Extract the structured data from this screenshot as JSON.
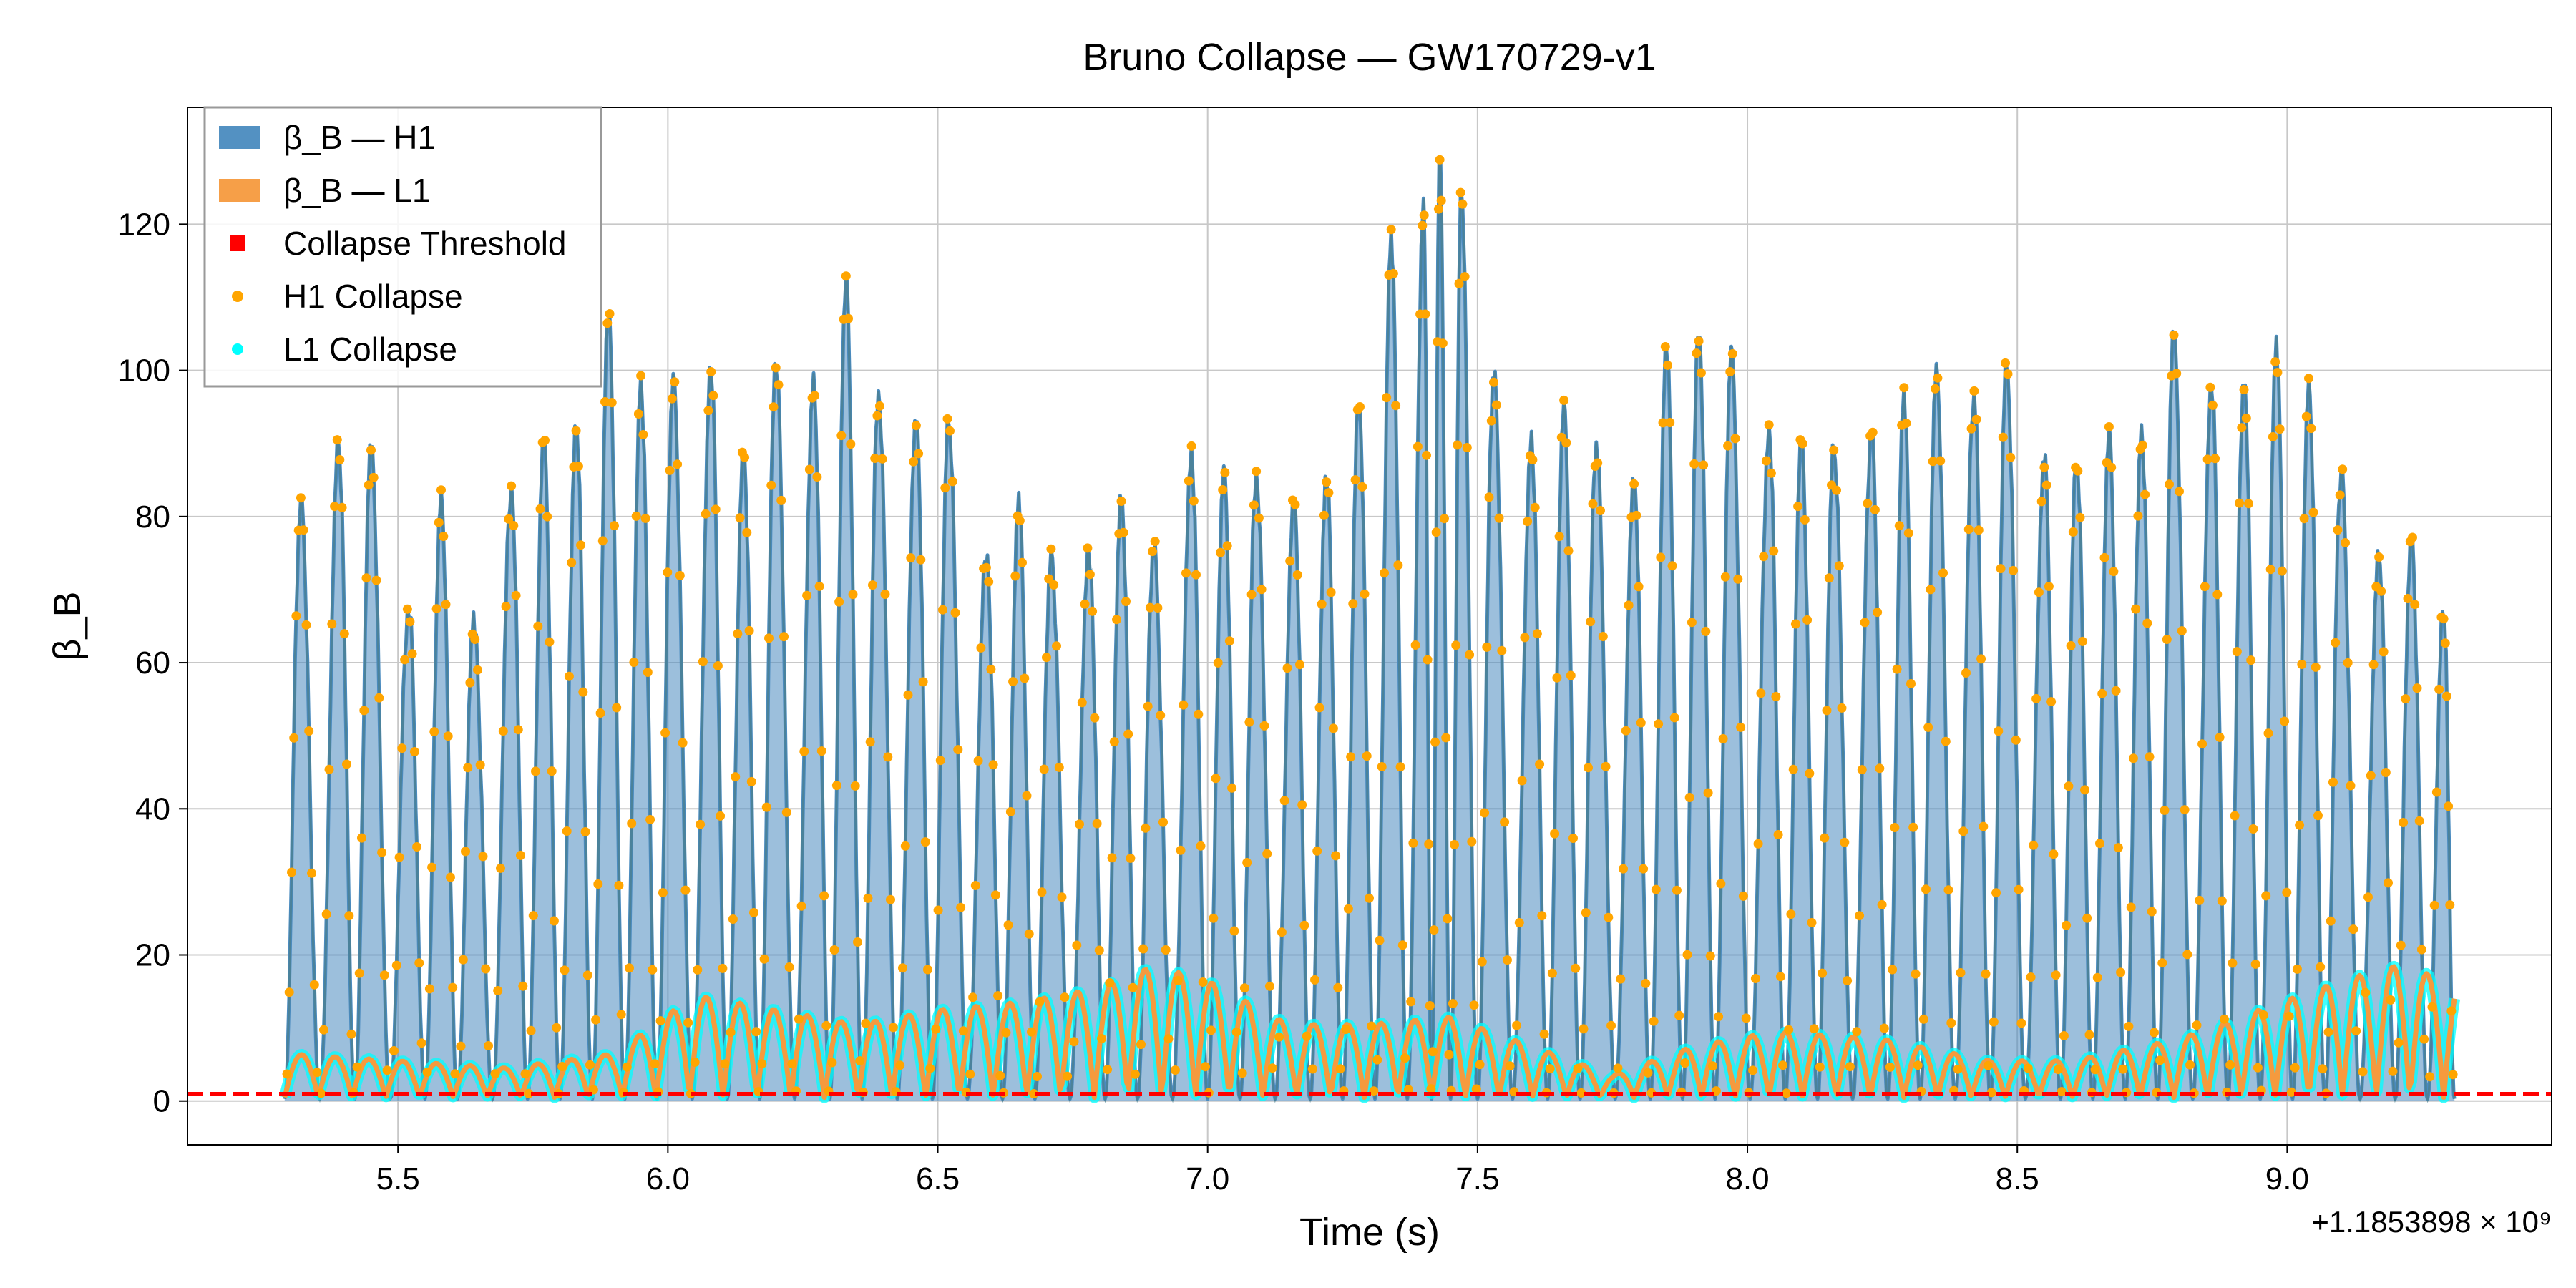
{
  "chart_data": {
    "type": "line",
    "title": "Bruno Collapse — GW170729-v1",
    "xlabel": "Time (s)",
    "ylabel": "β_B",
    "x_offset_label": "+1.1853898 × 10⁹",
    "xlim": [
      5.11,
      9.49
    ],
    "ylim": [
      -6,
      136
    ],
    "x_ticks": [
      5.5,
      6.0,
      6.5,
      7.0,
      7.5,
      8.0,
      8.5,
      9.0
    ],
    "x_tick_labels": [
      "5.5",
      "6.0",
      "6.5",
      "7.0",
      "7.5",
      "8.0",
      "8.5",
      "9.0"
    ],
    "y_ticks": [
      0,
      20,
      40,
      60,
      80,
      100,
      120
    ],
    "y_tick_labels": [
      "0",
      "20",
      "40",
      "60",
      "80",
      "100",
      "120"
    ],
    "grid": true,
    "legend_position": "top-left",
    "threshold": 1.0,
    "series": [
      {
        "name": "β_B — H1",
        "color": "#4a8bbf",
        "x_range": [
          5.29,
          9.31
        ],
        "peaks": [
          [
            5.32,
            82
          ],
          [
            5.39,
            90
          ],
          [
            5.45,
            90
          ],
          [
            5.52,
            68
          ],
          [
            5.58,
            82
          ],
          [
            5.64,
            66
          ],
          [
            5.71,
            84
          ],
          [
            5.77,
            90
          ],
          [
            5.83,
            93
          ],
          [
            5.89,
            108
          ],
          [
            5.95,
            98
          ],
          [
            6.01,
            99
          ],
          [
            6.08,
            100
          ],
          [
            6.14,
            89
          ],
          [
            6.2,
            102
          ],
          [
            6.27,
            98
          ],
          [
            6.33,
            112
          ],
          [
            6.39,
            97
          ],
          [
            6.46,
            93
          ],
          [
            6.52,
            94
          ],
          [
            6.59,
            75
          ],
          [
            6.65,
            82
          ],
          [
            6.71,
            75
          ],
          [
            6.78,
            75
          ],
          [
            6.84,
            83
          ],
          [
            6.9,
            76
          ],
          [
            6.97,
            88
          ],
          [
            7.03,
            86
          ],
          [
            7.09,
            86
          ],
          [
            7.16,
            82
          ],
          [
            7.22,
            86
          ],
          [
            7.28,
            96
          ],
          [
            7.34,
            118
          ],
          [
            7.4,
            123
          ],
          [
            7.43,
            129
          ],
          [
            7.47,
            125
          ],
          [
            7.53,
            100
          ],
          [
            7.6,
            90
          ],
          [
            7.66,
            95
          ],
          [
            7.72,
            90
          ],
          [
            7.79,
            85
          ],
          [
            7.85,
            104
          ],
          [
            7.91,
            106
          ],
          [
            7.97,
            102
          ],
          [
            8.04,
            92
          ],
          [
            8.1,
            90
          ],
          [
            8.16,
            90
          ],
          [
            8.23,
            92
          ],
          [
            8.29,
            96
          ],
          [
            8.35,
            100
          ],
          [
            8.42,
            97
          ],
          [
            8.48,
            101
          ],
          [
            8.55,
            88
          ],
          [
            8.61,
            88
          ],
          [
            8.67,
            91
          ],
          [
            8.73,
            92
          ],
          [
            8.79,
            105
          ],
          [
            8.86,
            98
          ],
          [
            8.92,
            99
          ],
          [
            8.98,
            103
          ],
          [
            9.04,
            98
          ],
          [
            9.1,
            86
          ],
          [
            9.17,
            75
          ],
          [
            9.23,
            77
          ],
          [
            9.29,
            68
          ]
        ]
      },
      {
        "name": "β_B — L1",
        "color": "#f59a3e",
        "x_range": [
          5.29,
          9.31
        ],
        "envelope_points": [
          [
            5.29,
            6
          ],
          [
            5.5,
            5
          ],
          [
            5.7,
            4
          ],
          [
            5.9,
            6
          ],
          [
            6.05,
            14
          ],
          [
            6.2,
            12
          ],
          [
            6.35,
            10
          ],
          [
            6.5,
            12
          ],
          [
            6.65,
            13
          ],
          [
            6.8,
            15
          ],
          [
            6.9,
            18
          ],
          [
            7.0,
            16
          ],
          [
            7.15,
            10
          ],
          [
            7.3,
            10
          ],
          [
            7.45,
            11
          ],
          [
            7.6,
            7
          ],
          [
            7.75,
            3
          ],
          [
            7.9,
            7
          ],
          [
            8.05,
            9
          ],
          [
            8.25,
            8
          ],
          [
            8.45,
            5
          ],
          [
            8.6,
            5
          ],
          [
            8.8,
            8
          ],
          [
            8.95,
            12
          ],
          [
            9.1,
            16
          ],
          [
            9.2,
            18
          ],
          [
            9.31,
            16
          ]
        ]
      }
    ],
    "legend": [
      {
        "label": "β_B — H1",
        "marker": "patch",
        "color": "#4a8bbf"
      },
      {
        "label": "β_B — L1",
        "marker": "patch",
        "color": "#f59a3e"
      },
      {
        "label": "Collapse Threshold",
        "marker": "square",
        "color": "#ff0000"
      },
      {
        "label": "H1 Collapse",
        "marker": "dot",
        "color": "#ffa500"
      },
      {
        "label": "L1 Collapse",
        "marker": "dot",
        "color": "#00ffff"
      }
    ]
  }
}
